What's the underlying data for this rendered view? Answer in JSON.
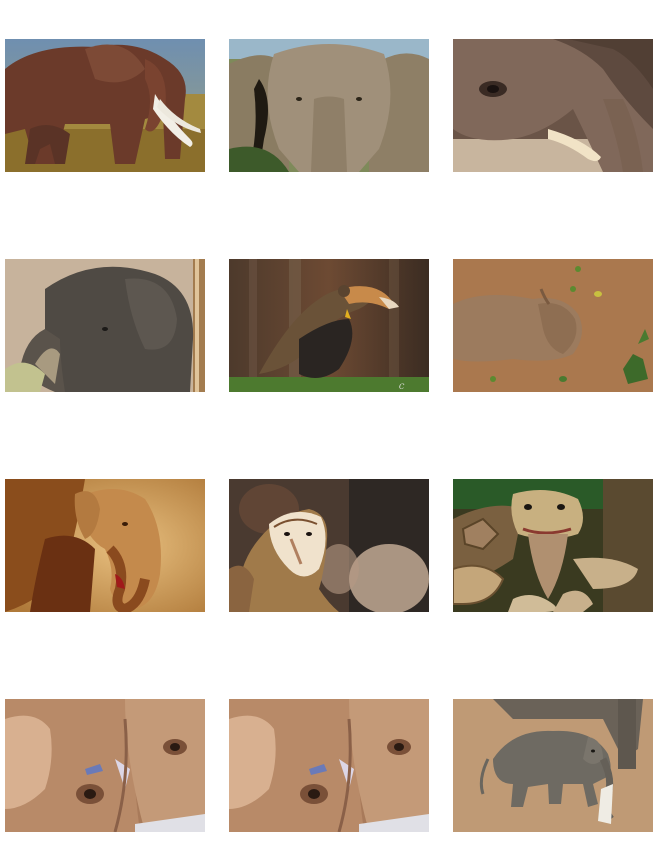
{
  "gallery": {
    "columns": 3,
    "rows": 4,
    "tiles": [
      {
        "subject": "elephant-herd"
      },
      {
        "subject": "elephant-face"
      },
      {
        "subject": "elephant-tusk-closeup"
      },
      {
        "subject": "elephant-by-wall"
      },
      {
        "subject": "hawk-in-flight"
      },
      {
        "subject": "elephant-lying-on-dirt"
      },
      {
        "subject": "elephant-golden-light"
      },
      {
        "subject": "barn-owl"
      },
      {
        "subject": "tortoise"
      },
      {
        "subject": "elephant-eye-closeup"
      },
      {
        "subject": "elephant-eye-closeup"
      },
      {
        "subject": "baby-elephant"
      }
    ],
    "watermark_text": "C"
  }
}
